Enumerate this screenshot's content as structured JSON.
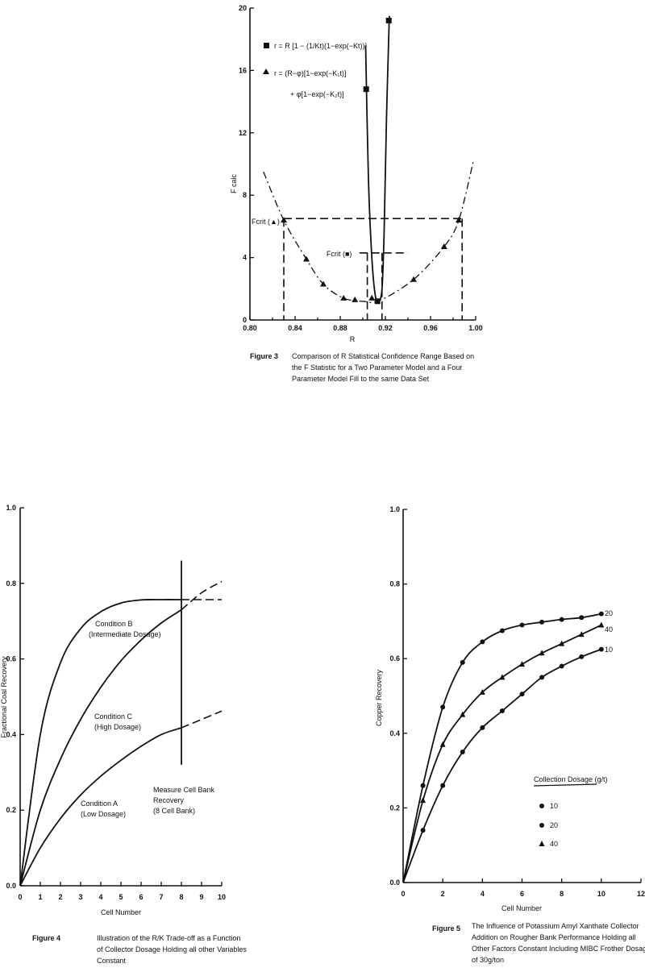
{
  "fig3": {
    "caption_label": "Figure 3",
    "caption_lines": [
      "Comparison of R Statistical Confidence Range Based on",
      "the F Statistic for a Two Parameter Model and a Four",
      "Parameter Model Fill to the same Data Set"
    ],
    "ylabel": "F calc",
    "xlabel": "R",
    "legend1": "r = R [1 − (1/Kt)(1−exp(−Kt))]",
    "legend2a": "r = (R−φ)[1−exp(−K₁t)]",
    "legend2b": "+ φ[1−exp(−K₂t)]",
    "fcrit_tri_label": "Fcrit (▲)",
    "fcrit_sq_label": "Fcrit (■)"
  },
  "fig4": {
    "caption_label": "Figure 4",
    "caption_lines": [
      "Illustration of the R/K Trade-off as a Function",
      "of Collector Dosage Holding all other Variables",
      "Constant"
    ],
    "ylabel": "Fractional Coal Recovery",
    "xlabel": "Cell Number",
    "condB": [
      "Condition B",
      "(Intermediate Dosage)"
    ],
    "condC": [
      "Condition C",
      "(High Dosage)"
    ],
    "condA": [
      "Condition A",
      "(Low Dosage)"
    ],
    "measure": [
      "Measure Cell Bank",
      "Recovery",
      "(8 Cell Bank)"
    ]
  },
  "fig5": {
    "caption_label": "Figure 5",
    "caption_lines": [
      "The Influence of Potassium Amyl Xanthate Collector",
      "Addition on Rougher Bank Performance Holding all",
      "Other Factors Constant Including MIBC Frother Dosage",
      "of 30g/ton"
    ],
    "ylabel": "Copper Recovery",
    "xlabel": "Cell Number",
    "legend_title": "Collection Dosage (g/t)",
    "legend_items": [
      "10",
      "20",
      "40"
    ],
    "end_labels": [
      "20",
      "40",
      "10"
    ]
  },
  "chart_data": [
    {
      "type": "scatter",
      "xlabel": "R",
      "ylabel": "F calc",
      "xlim": [
        0.8,
        1.0
      ],
      "ylim": [
        0,
        20
      ],
      "x_ticks": [
        "0.80",
        "0.84",
        "0.88",
        "0.92",
        "0.96",
        "1.00"
      ],
      "y_ticks": [
        "0",
        "4",
        "8",
        "12",
        "16",
        "20"
      ],
      "series": [
        {
          "marker": "square",
          "x": [
            0.903,
            0.913,
            0.923
          ],
          "y": [
            14.8,
            1.2,
            19.2
          ]
        },
        {
          "marker": "triangle",
          "x": [
            0.83,
            0.85,
            0.865,
            0.883,
            0.893,
            0.908,
            0.945,
            0.972,
            0.985
          ],
          "y": [
            6.4,
            3.9,
            2.3,
            1.4,
            1.3,
            1.4,
            2.6,
            4.7,
            6.4
          ]
        }
      ],
      "fcrit_triangle": 6.5,
      "fcrit_square": 4.3
    },
    {
      "type": "line",
      "xlabel": "Cell Number",
      "ylabel": "Fractional Coal Recovery",
      "xlim": [
        0,
        10
      ],
      "ylim": [
        0,
        1.0
      ],
      "x_ticks": [
        "0",
        "1",
        "2",
        "3",
        "4",
        "5",
        "6",
        "7",
        "8",
        "9",
        "10"
      ],
      "y_ticks": [
        "0.0",
        "0.2",
        "0.4",
        "0.6",
        "0.8",
        "1.0"
      ],
      "series": [
        {
          "x": [
            0,
            1,
            2,
            3,
            4,
            5,
            6,
            7,
            8,
            9,
            10
          ],
          "y": [
            0,
            0.4,
            0.59,
            0.68,
            0.725,
            0.748,
            0.756,
            0.757,
            0.757,
            0.757,
            0.757
          ]
        },
        {
          "x": [
            0,
            1,
            2,
            3,
            4,
            5,
            6,
            7,
            8,
            9,
            10
          ],
          "y": [
            0,
            0.2,
            0.335,
            0.44,
            0.525,
            0.595,
            0.65,
            0.695,
            0.73,
            0.775,
            0.805
          ]
        },
        {
          "x": [
            0,
            1,
            2,
            3,
            4,
            5,
            6,
            7,
            8,
            9,
            10
          ],
          "y": [
            0,
            0.1,
            0.178,
            0.24,
            0.29,
            0.332,
            0.369,
            0.4,
            0.418,
            0.44,
            0.462
          ]
        }
      ],
      "vline_x": 8
    },
    {
      "type": "line",
      "xlabel": "Cell Number",
      "ylabel": "Copper Recovery",
      "xlim": [
        0,
        12
      ],
      "ylim": [
        0,
        1.0
      ],
      "x_ticks": [
        "0",
        "2",
        "4",
        "6",
        "8",
        "10",
        "12"
      ],
      "y_ticks": [
        "0.0",
        "0.2",
        "0.4",
        "0.6",
        "0.8",
        "1.0"
      ],
      "series": [
        {
          "name": "20",
          "marker": "circle",
          "x": [
            0,
            1,
            2,
            3,
            4,
            5,
            6,
            7,
            8,
            9,
            10
          ],
          "y": [
            0,
            0.26,
            0.47,
            0.59,
            0.645,
            0.675,
            0.69,
            0.698,
            0.705,
            0.71,
            0.72
          ]
        },
        {
          "name": "40",
          "marker": "triangle",
          "x": [
            0,
            1,
            2,
            3,
            4,
            5,
            6,
            7,
            8,
            9,
            10
          ],
          "y": [
            0,
            0.22,
            0.37,
            0.45,
            0.51,
            0.55,
            0.585,
            0.615,
            0.64,
            0.665,
            0.69
          ]
        },
        {
          "name": "10",
          "marker": "circle",
          "x": [
            0,
            1,
            2,
            3,
            4,
            5,
            6,
            7,
            8,
            9,
            10
          ],
          "y": [
            0,
            0.14,
            0.26,
            0.35,
            0.415,
            0.46,
            0.505,
            0.55,
            0.58,
            0.605,
            0.625
          ]
        }
      ]
    }
  ]
}
